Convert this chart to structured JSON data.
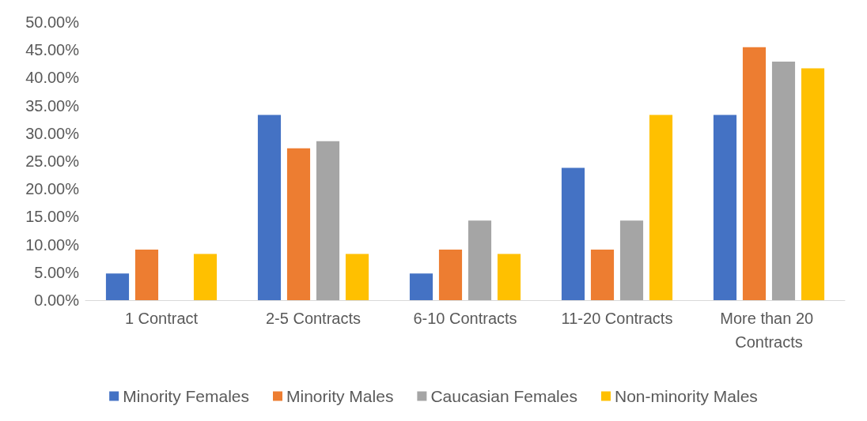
{
  "chart_data": {
    "type": "bar",
    "categories": [
      "1 Contract",
      "2-5 Contracts",
      "6-10 Contracts",
      "11-20 Contracts",
      "More than 20 Contracts"
    ],
    "series": [
      {
        "name": "Minority Females",
        "color": "#4472c4",
        "values": [
          4.8,
          33.3,
          4.8,
          23.8,
          33.3
        ]
      },
      {
        "name": "Minority Males",
        "color": "#ed7d31",
        "values": [
          9.1,
          27.3,
          9.1,
          9.1,
          45.5
        ]
      },
      {
        "name": "Caucasian Females",
        "color": "#a5a5a5",
        "values": [
          0,
          28.6,
          14.3,
          14.3,
          42.9
        ]
      },
      {
        "name": "Non-minority Males",
        "color": "#ffc000",
        "values": [
          8.3,
          8.3,
          8.3,
          33.3,
          41.7
        ]
      }
    ],
    "ylim": [
      0,
      50
    ],
    "yticks": [
      {
        "value": 0,
        "label": "0.00%"
      },
      {
        "value": 5,
        "label": "5.00%"
      },
      {
        "value": 10,
        "label": "10.00%"
      },
      {
        "value": 15,
        "label": "15.00%"
      },
      {
        "value": 20,
        "label": "20.00%"
      },
      {
        "value": 25,
        "label": "25.00%"
      },
      {
        "value": 30,
        "label": "30.00%"
      },
      {
        "value": 35,
        "label": "35.00%"
      },
      {
        "value": 40,
        "label": "40.00%"
      },
      {
        "value": 45,
        "label": "45.00%"
      },
      {
        "value": 50,
        "label": "50.00%"
      }
    ],
    "grid": false,
    "legend": "bottom"
  }
}
